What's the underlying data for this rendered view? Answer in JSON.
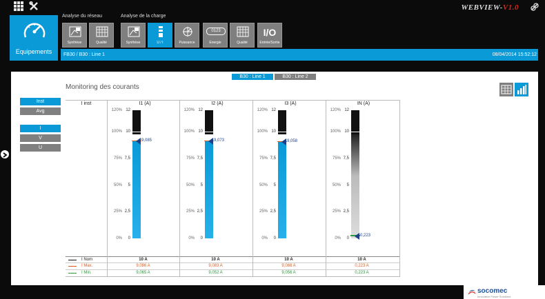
{
  "brand": {
    "name": "WEBVIEW-",
    "version": "V1.0"
  },
  "equipment_tile": {
    "label": "Equipements"
  },
  "groups": {
    "network": "Analyse du réseau",
    "load": "Analyse de la charge"
  },
  "toolbar": [
    {
      "label": "Synthèse",
      "icon": "synthesis-icon"
    },
    {
      "label": "Qualité",
      "icon": "quality-grid-icon"
    },
    {
      "label": "Synthèse",
      "icon": "synthesis-icon"
    },
    {
      "label": "U / I",
      "icon": "ui-bars-icon"
    },
    {
      "label": "Puissance",
      "icon": "power-vector-icon"
    },
    {
      "label": "Energie",
      "icon": "energy-counter-icon",
      "text": "0123"
    },
    {
      "label": "Qualité",
      "icon": "quality-grid-icon"
    },
    {
      "label": "Entrée/Sortie",
      "icon": "io-icon",
      "text": "I/O"
    }
  ],
  "breadcrumb": {
    "path": "FB30 / B30 : Line 1",
    "datetime": "08/04/2014 15:52:12"
  },
  "line_tabs": [
    "B30 : Line 1",
    "B30 : Line 2"
  ],
  "panel_title": "Monitoring des courants",
  "side_buttons": {
    "mode": [
      "Inst",
      "Avg"
    ],
    "quantity": [
      "I",
      "V",
      "U"
    ]
  },
  "table": {
    "corner": "I inst",
    "columns": [
      "I1 (A)",
      "I2 (A)",
      "I3 (A)",
      "IN (A)"
    ],
    "pct_ticks": [
      "120%",
      "100%",
      "75%",
      "50%",
      "25%",
      "0%"
    ],
    "val_ticks": [
      "12",
      "10",
      "7,5",
      "5",
      "2,5",
      "0"
    ],
    "rows": [
      {
        "label": "I Nom",
        "color": "#111111",
        "values": [
          "10 A",
          "10 A",
          "10 A",
          "10 A"
        ]
      },
      {
        "label": "I Max.",
        "color": "#e05a1a",
        "values": [
          "9,086 A",
          "9,083 A",
          "9,088 A",
          "0,223 A"
        ]
      },
      {
        "label": "I Min.",
        "color": "#2a9a3a",
        "values": [
          "9,065 A",
          "9,052 A",
          "9,056 A",
          "0,223 A"
        ]
      }
    ]
  },
  "chart_data": {
    "type": "bar",
    "categories": [
      "I1 (A)",
      "I2 (A)",
      "I3 (A)",
      "IN (A)"
    ],
    "values": [
      9.085,
      9.073,
      9.058,
      0.223
    ],
    "value_labels": [
      "9,085",
      "9,073",
      "9,058",
      "0,223"
    ],
    "ylim": [
      0,
      12
    ],
    "nominal": 10
  },
  "footer": {
    "logo": "socomec",
    "tagline": "Innovative Power Solutions"
  }
}
